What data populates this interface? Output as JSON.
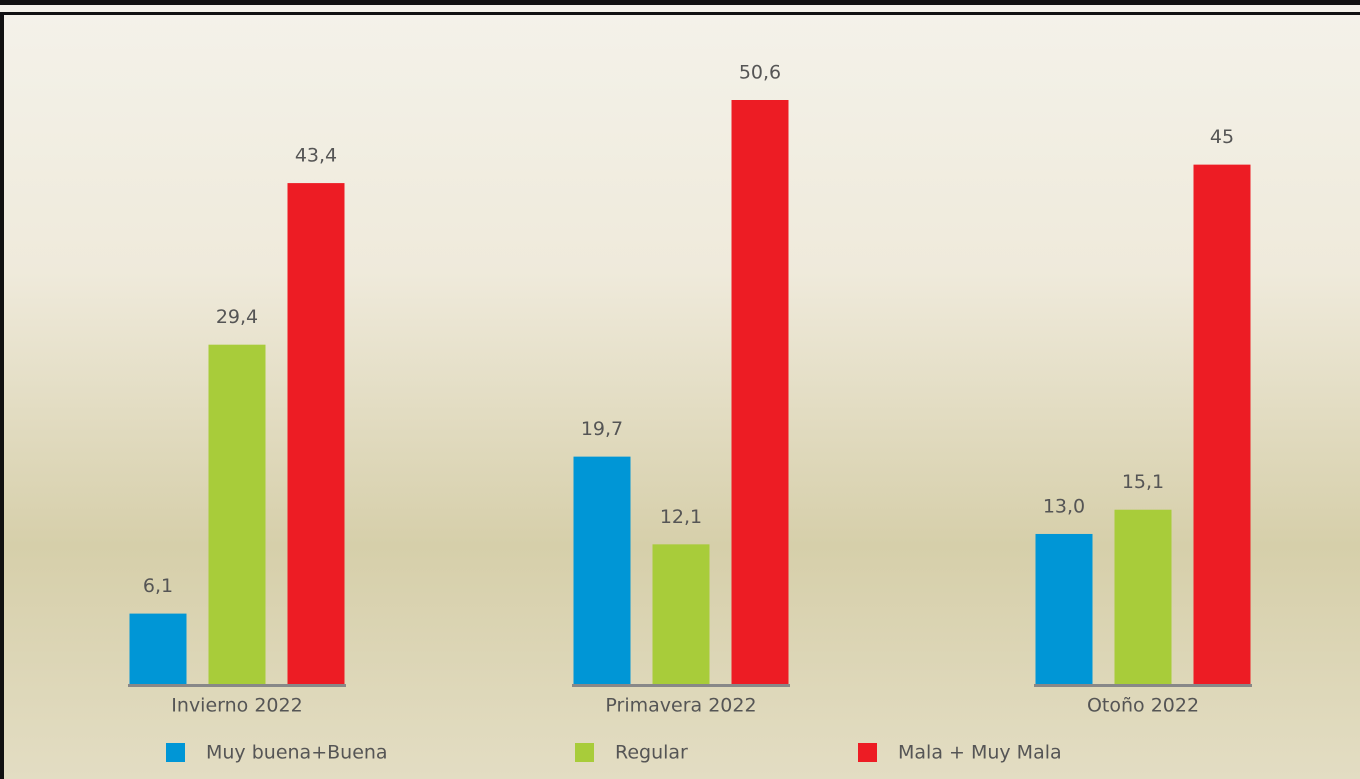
{
  "chart_data": {
    "type": "bar",
    "categories": [
      "Invierno 2022",
      "Primavera 2022",
      "Otoño 2022"
    ],
    "series": [
      {
        "name": "Muy buena+Buena",
        "color": "#0096d6",
        "values": [
          6.1,
          19.7,
          13.0
        ],
        "value_labels": [
          "6,1",
          "19,7",
          "13,0"
        ]
      },
      {
        "name": "Regular",
        "color": "#a8cc3a",
        "values": [
          29.4,
          12.1,
          15.1
        ],
        "value_labels": [
          "29,4",
          "12,1",
          "15,1"
        ]
      },
      {
        "name": "Mala + Muy Mala",
        "color": "#ed1c24",
        "values": [
          43.4,
          50.6,
          45
        ],
        "value_labels": [
          "43,4",
          "50,6",
          "45"
        ]
      }
    ]
  }
}
